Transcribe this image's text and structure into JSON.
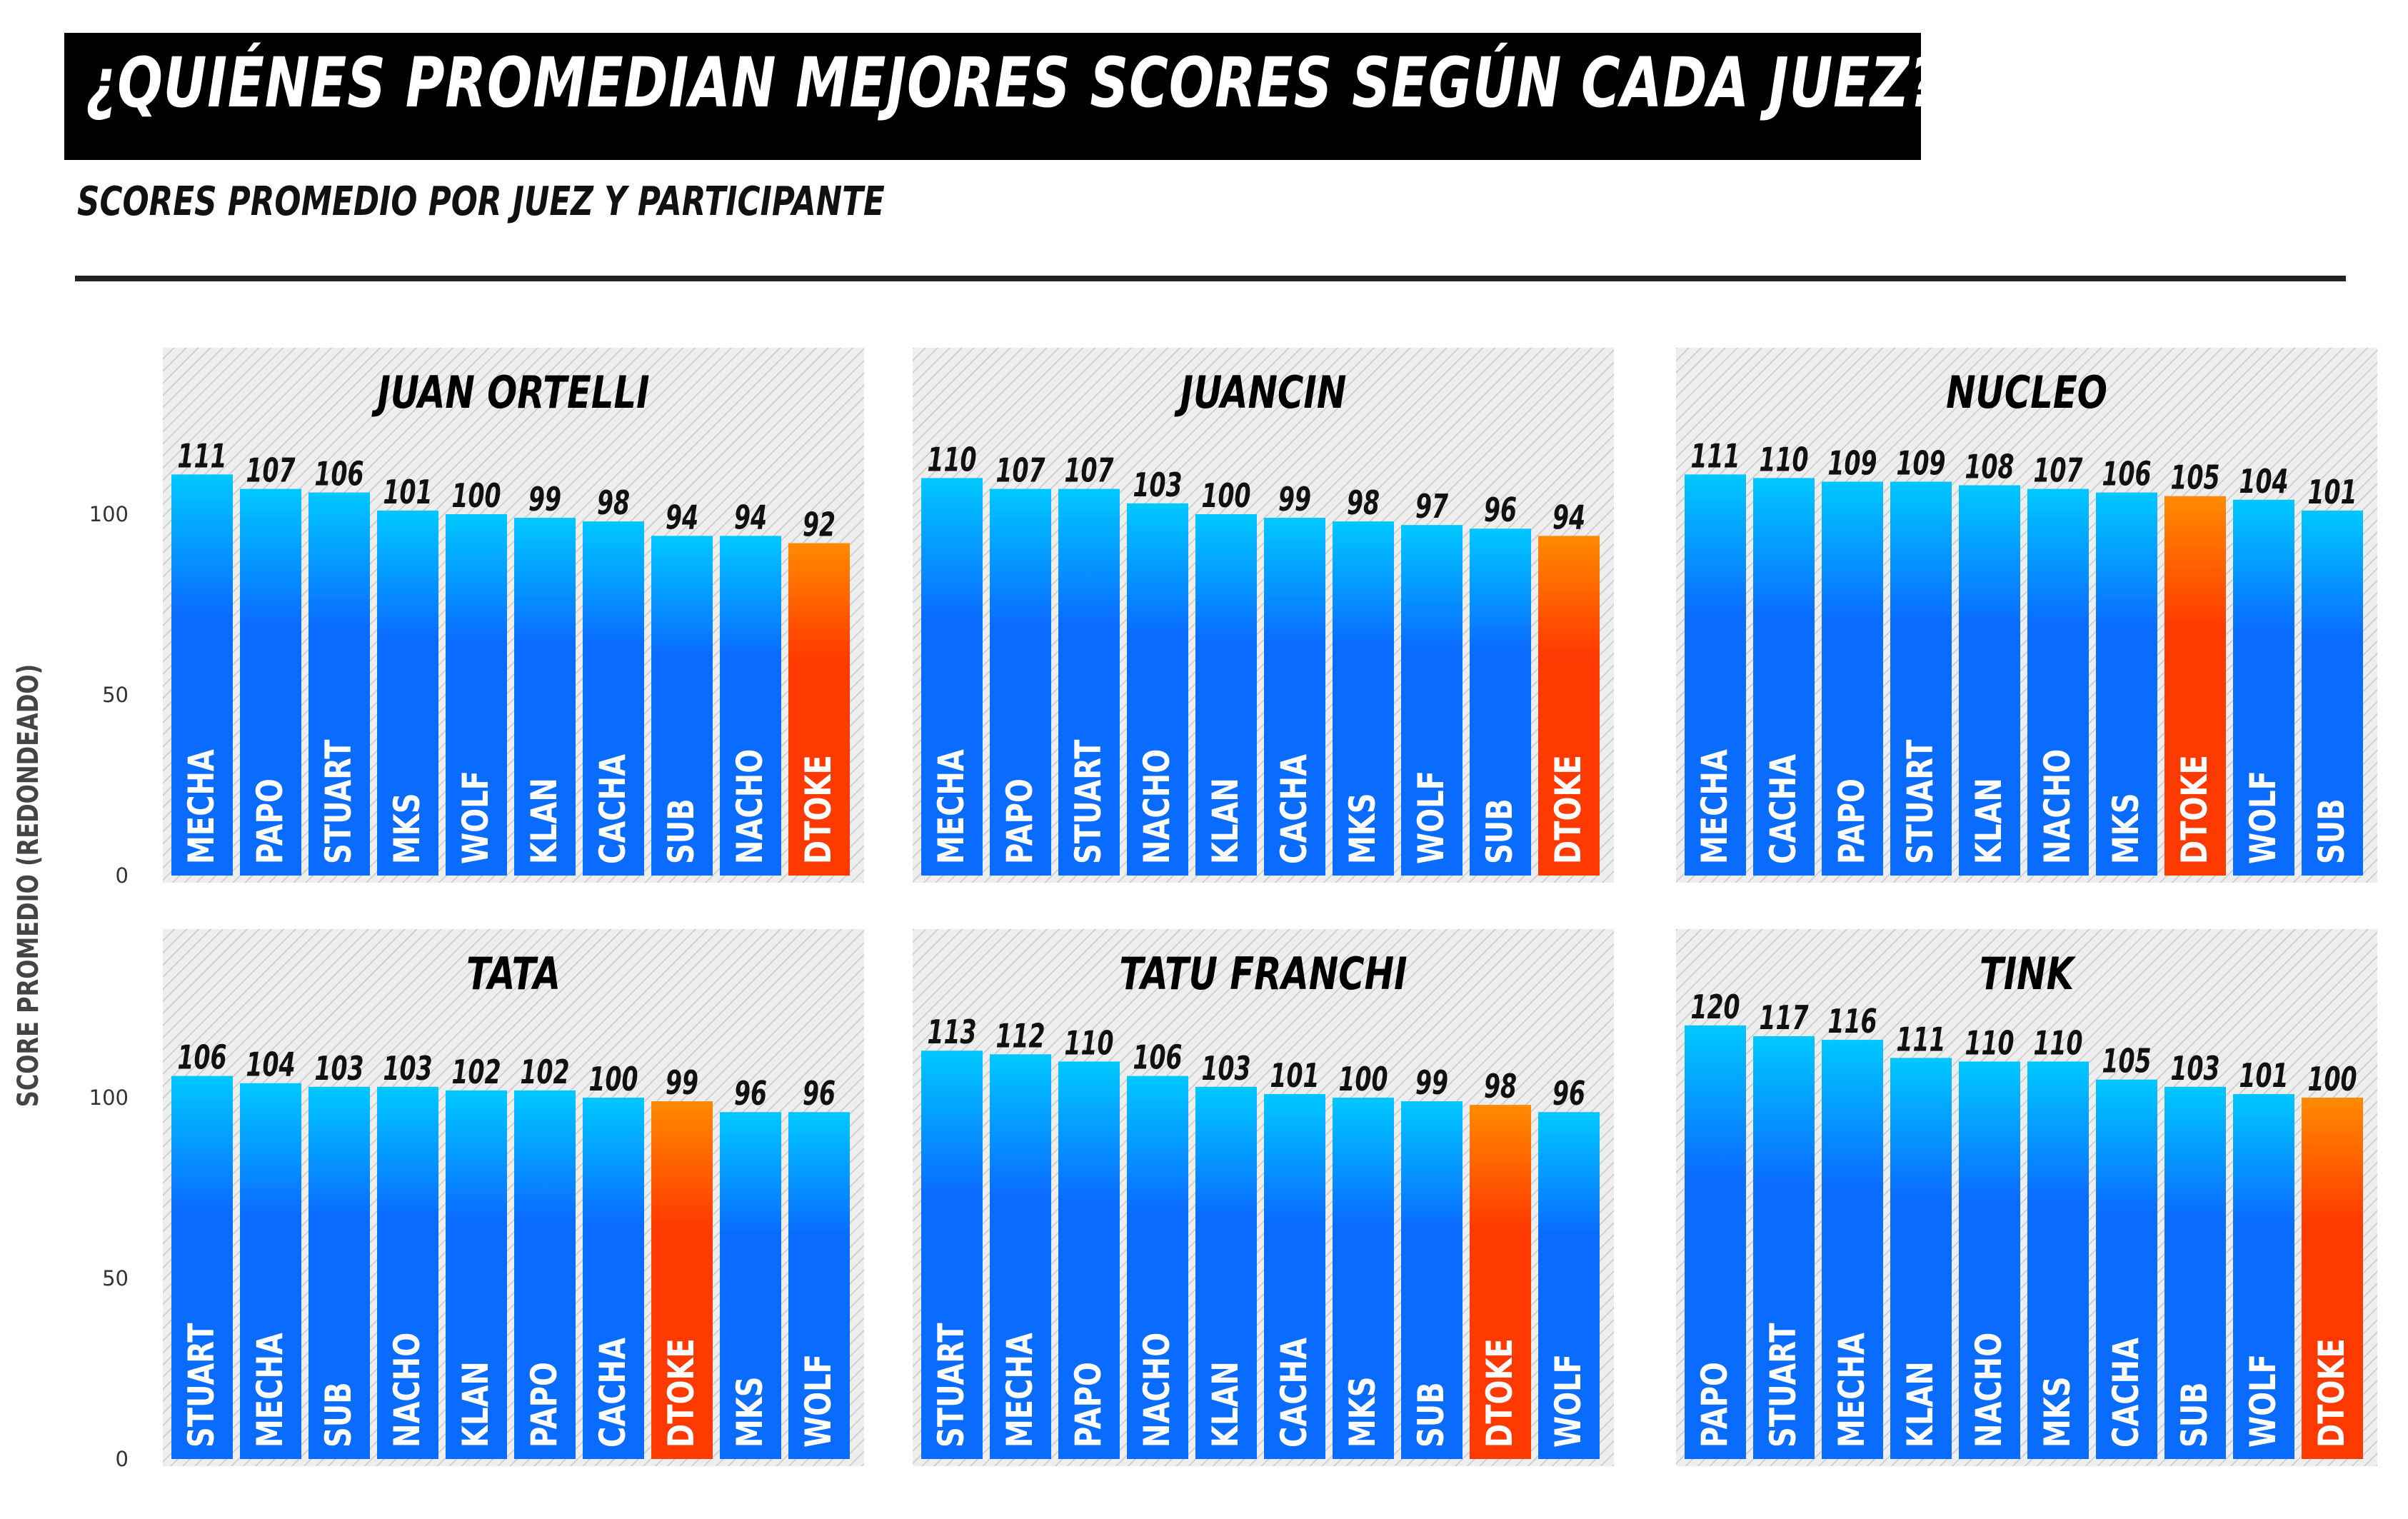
{
  "title": "¿QUIÉNES PROMEDIAN MEJORES SCORES SEGÚN CADA JUEZ?",
  "subtitle": "SCORES PROMEDIO POR JUEZ Y PARTICIPANTE",
  "y_axis_title": "SCORE PROMEDIO (REDONDEADO)",
  "colors": {
    "bar_top": "#00c8ff",
    "bar_bottom": "#0a6cff",
    "highlight_top": "#ff8a00",
    "highlight_bottom": "#ff3a00",
    "panel_bg": "#eeeeee",
    "hatch": "#c8c8c8"
  },
  "chart_data": [
    {
      "type": "bar",
      "title": "JUAN ORTELLI",
      "categories": [
        "MECHA",
        "PAPO",
        "STUART",
        "MKS",
        "WOLF",
        "KLAN",
        "CACHA",
        "SUB",
        "NACHO",
        "DTOKE"
      ],
      "values": [
        111,
        107,
        106,
        101,
        100,
        99,
        98,
        94,
        94,
        92
      ],
      "highlight": "DTOKE",
      "yticks": [
        0,
        50,
        100
      ],
      "ylim": [
        0,
        125
      ]
    },
    {
      "type": "bar",
      "title": "JUANCIN",
      "categories": [
        "MECHA",
        "PAPO",
        "STUART",
        "NACHO",
        "KLAN",
        "CACHA",
        "MKS",
        "WOLF",
        "SUB",
        "DTOKE"
      ],
      "values": [
        110,
        107,
        107,
        103,
        100,
        99,
        98,
        97,
        96,
        94
      ],
      "highlight": "DTOKE",
      "yticks": [
        0,
        50,
        100
      ],
      "ylim": [
        0,
        125
      ]
    },
    {
      "type": "bar",
      "title": "NUCLEO",
      "categories": [
        "MECHA",
        "CACHA",
        "PAPO",
        "STUART",
        "KLAN",
        "NACHO",
        "MKS",
        "DTOKE",
        "WOLF",
        "SUB"
      ],
      "values": [
        111,
        110,
        109,
        109,
        108,
        107,
        106,
        105,
        104,
        101
      ],
      "highlight": "DTOKE",
      "yticks": [
        0,
        50,
        100
      ],
      "ylim": [
        0,
        125
      ]
    },
    {
      "type": "bar",
      "title": "TATA",
      "categories": [
        "STUART",
        "MECHA",
        "SUB",
        "NACHO",
        "KLAN",
        "PAPO",
        "CACHA",
        "DTOKE",
        "MKS",
        "WOLF"
      ],
      "values": [
        106,
        104,
        103,
        103,
        102,
        102,
        100,
        99,
        96,
        96
      ],
      "highlight": "DTOKE",
      "yticks": [
        0,
        50,
        100
      ],
      "ylim": [
        0,
        125
      ]
    },
    {
      "type": "bar",
      "title": "TATU FRANCHI",
      "categories": [
        "STUART",
        "MECHA",
        "PAPO",
        "NACHO",
        "KLAN",
        "CACHA",
        "MKS",
        "SUB",
        "DTOKE",
        "WOLF"
      ],
      "values": [
        113,
        112,
        110,
        106,
        103,
        101,
        100,
        99,
        98,
        96
      ],
      "highlight": "DTOKE",
      "yticks": [
        0,
        50,
        100
      ],
      "ylim": [
        0,
        125
      ]
    },
    {
      "type": "bar",
      "title": "TINK",
      "categories": [
        "PAPO",
        "STUART",
        "MECHA",
        "KLAN",
        "NACHO",
        "MKS",
        "CACHA",
        "SUB",
        "WOLF",
        "DTOKE"
      ],
      "values": [
        120,
        117,
        116,
        111,
        110,
        110,
        105,
        103,
        101,
        100
      ],
      "highlight": "DTOKE",
      "yticks": [
        0,
        50,
        100
      ],
      "ylim": [
        0,
        125
      ]
    }
  ]
}
